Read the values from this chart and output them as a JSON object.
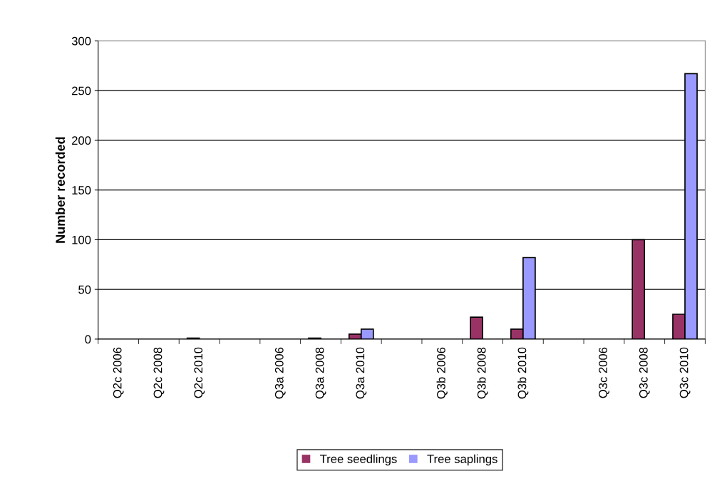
{
  "chart_data": {
    "type": "bar",
    "ylabel": "Number recorded",
    "categories": [
      "Q2c 2006",
      "Q2c 2008",
      "Q2c 2010",
      null,
      "Q3a 2006",
      "Q3a 2008",
      "Q3a 2010",
      null,
      "Q3b 2006",
      "Q3b 2008",
      "Q3b 2010",
      null,
      "Q3c 2006",
      "Q3c 2008",
      "Q3c 2010"
    ],
    "series": [
      {
        "name": "Tree seedlings",
        "color": "#993366",
        "values": [
          0,
          0,
          1,
          null,
          0,
          1,
          5,
          null,
          0,
          22,
          10,
          null,
          0,
          100,
          25
        ]
      },
      {
        "name": "Tree saplings",
        "color": "#9999ff",
        "values": [
          0,
          0,
          0,
          null,
          0,
          0,
          10,
          null,
          0,
          0,
          82,
          null,
          0,
          0,
          267
        ]
      }
    ],
    "ylim": [
      0,
      300
    ],
    "yticks": [
      0,
      50,
      100,
      150,
      200,
      250,
      300
    ],
    "grid": "y",
    "legend": "bottom"
  }
}
